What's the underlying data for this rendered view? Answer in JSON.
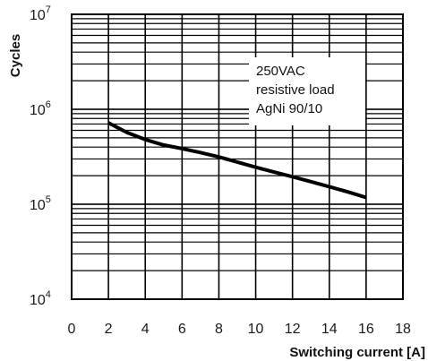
{
  "chart_data": {
    "type": "line",
    "xlabel": "Switching current [A]",
    "ylabel": "Cycles",
    "xlim": [
      0,
      18
    ],
    "ylim": [
      10000,
      10000000
    ],
    "yscale": "log",
    "grid": true,
    "x_ticks": [
      "0",
      "2",
      "4",
      "6",
      "8",
      "10",
      "12",
      "14",
      "16",
      "18"
    ],
    "y_ticks": [
      {
        "base": "10",
        "exp": "4"
      },
      {
        "base": "10",
        "exp": "5"
      },
      {
        "base": "10",
        "exp": "6"
      },
      {
        "base": "10",
        "exp": "7"
      }
    ],
    "legend_placement": "top-right",
    "annotation_lines": [
      "250VAC",
      "resistive load",
      "AgNi 90/10"
    ],
    "line_color": "#000000",
    "series": [
      {
        "x": [
          2,
          3,
          4,
          5,
          6,
          7,
          8,
          9,
          10,
          11,
          12,
          13,
          14,
          15,
          16
        ],
        "y": [
          720000,
          570000,
          480000,
          420000,
          385000,
          350000,
          315000,
          278000,
          245000,
          218000,
          195000,
          173000,
          153000,
          135000,
          118000
        ]
      }
    ]
  }
}
